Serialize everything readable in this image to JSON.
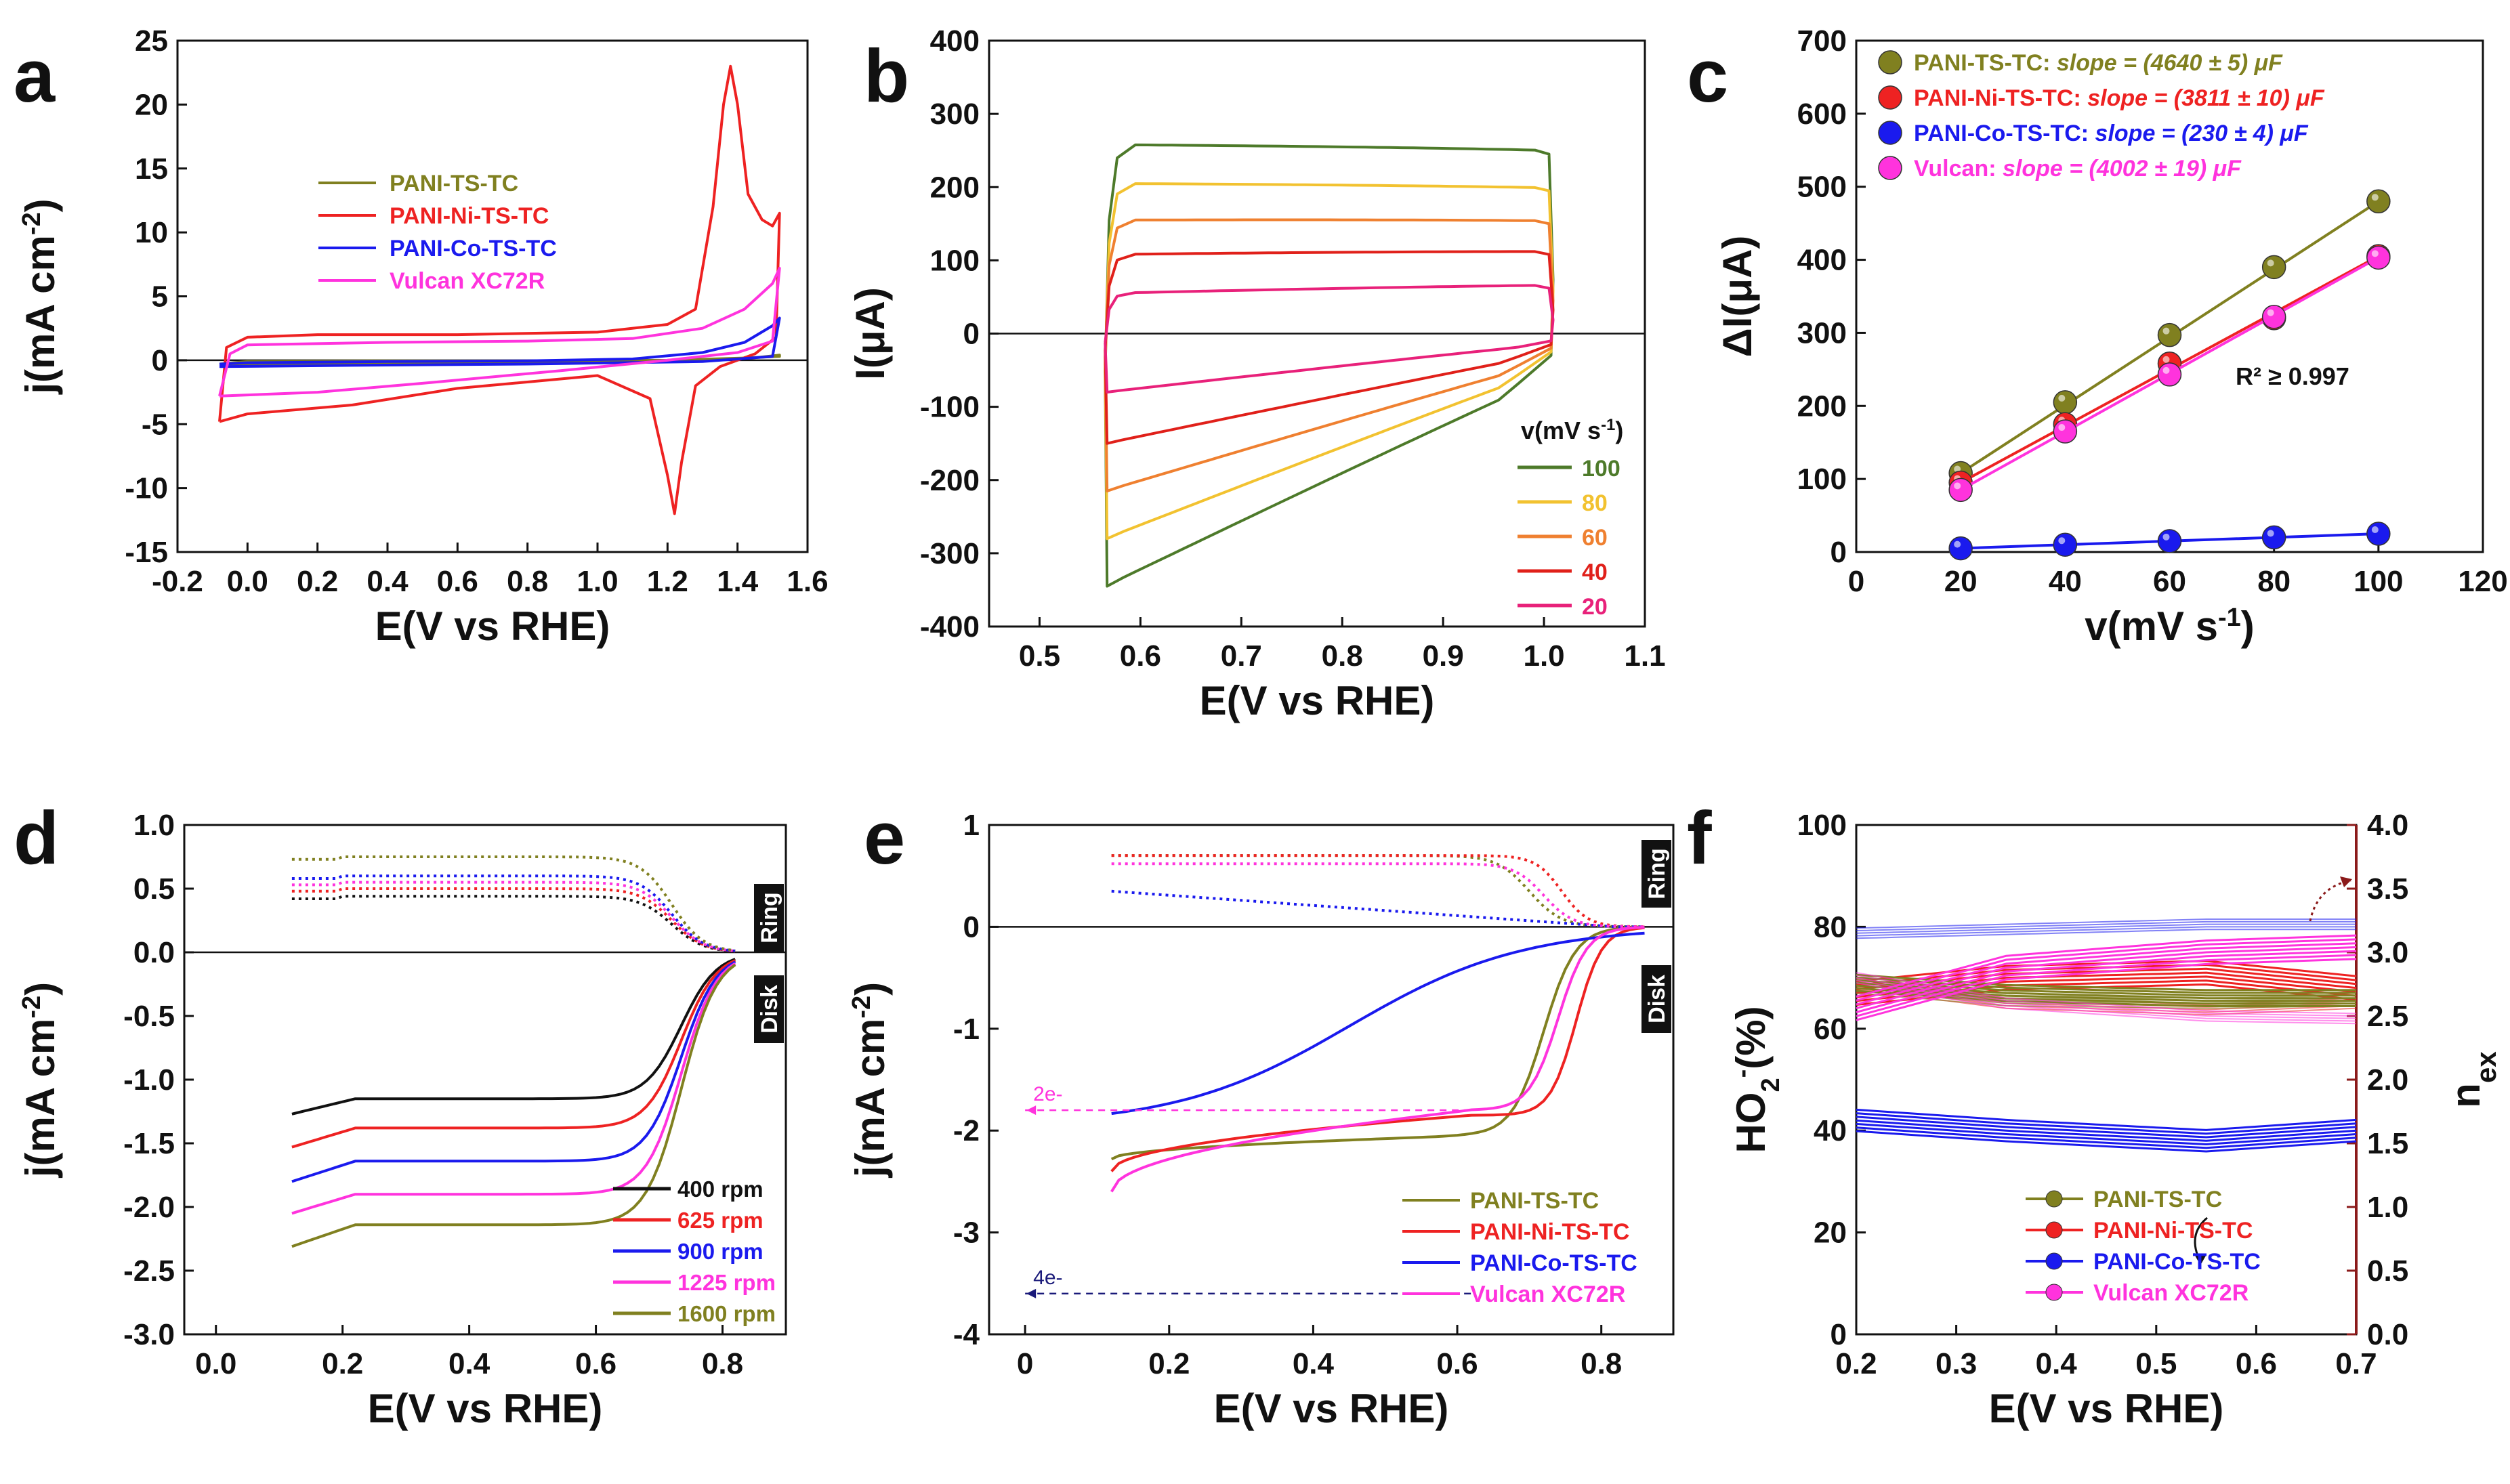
{
  "figure": {
    "panels": [
      {
        "id": "a",
        "letter": "a"
      },
      {
        "id": "b",
        "letter": "b"
      },
      {
        "id": "c",
        "letter": "c"
      },
      {
        "id": "d",
        "letter": "d"
      },
      {
        "id": "e",
        "letter": "e"
      },
      {
        "id": "f",
        "letter": "f"
      }
    ]
  },
  "colors": {
    "tc": "#808020",
    "ni": "#ee2222",
    "co": "#1a1aee",
    "vulcan": "#ff33dd",
    "rpm400": "#111111",
    "navy": "#1a1a7a",
    "darkred": "#8b1a1a",
    "green100": "#4d7a2a",
    "yellow80": "#f2c230",
    "orange60": "#ef8030",
    "red40": "#e0201a",
    "pink20": "#e8217a"
  },
  "chart_data": [
    {
      "panel": "a",
      "type": "line",
      "xlabel": "E(V vs RHE)",
      "ylabel": "j(mA cm-2)",
      "xlim": [
        -0.2,
        1.6
      ],
      "ylim": [
        -15,
        25
      ],
      "xticks": [
        "-0.2",
        "0.0",
        "0.2",
        "0.4",
        "0.6",
        "0.8",
        "1.0",
        "1.2",
        "1.4",
        "1.6"
      ],
      "yticks": [
        "-15",
        "-10",
        "-5",
        "0",
        "5",
        "10",
        "15",
        "20",
        "25"
      ],
      "legend": [
        "PANI-TS-TC",
        "PANI-Ni-TS-TC",
        "PANI-Co-TS-TC",
        "Vulcan XC72R"
      ],
      "series": [
        {
          "name": "PANI-TS-TC",
          "color": "tc",
          "points": [
            [
              -0.08,
              -0.3
            ],
            [
              0.0,
              -0.1
            ],
            [
              0.4,
              -0.05
            ],
            [
              0.8,
              -0.05
            ],
            [
              1.2,
              0.0
            ],
            [
              1.45,
              0.2
            ],
            [
              1.52,
              0.4
            ],
            [
              1.52,
              0.3
            ],
            [
              1.2,
              -0.1
            ],
            [
              0.6,
              -0.2
            ],
            [
              0.2,
              -0.25
            ],
            [
              -0.08,
              -0.3
            ]
          ]
        },
        {
          "name": "PANI-Ni-TS-TC",
          "color": "ni",
          "points": [
            [
              -0.08,
              -4.8
            ],
            [
              -0.06,
              1.0
            ],
            [
              0.0,
              1.8
            ],
            [
              0.2,
              2.0
            ],
            [
              0.6,
              2.0
            ],
            [
              1.0,
              2.2
            ],
            [
              1.2,
              2.8
            ],
            [
              1.28,
              4.0
            ],
            [
              1.33,
              12
            ],
            [
              1.36,
              20
            ],
            [
              1.38,
              23
            ],
            [
              1.4,
              20
            ],
            [
              1.43,
              13
            ],
            [
              1.47,
              11
            ],
            [
              1.5,
              10.5
            ],
            [
              1.52,
              11.5
            ],
            [
              1.51,
              1.8
            ],
            [
              1.45,
              0.5
            ],
            [
              1.35,
              -0.5
            ],
            [
              1.28,
              -2.0
            ],
            [
              1.24,
              -8
            ],
            [
              1.22,
              -12
            ],
            [
              1.2,
              -9
            ],
            [
              1.15,
              -3
            ],
            [
              1.0,
              -1.2
            ],
            [
              0.6,
              -2.2
            ],
            [
              0.3,
              -3.5
            ],
            [
              0.0,
              -4.2
            ],
            [
              -0.08,
              -4.8
            ]
          ]
        },
        {
          "name": "PANI-Co-TS-TC",
          "color": "co",
          "points": [
            [
              -0.08,
              -0.3
            ],
            [
              0.0,
              -0.2
            ],
            [
              0.4,
              -0.1
            ],
            [
              0.8,
              -0.05
            ],
            [
              1.1,
              0.1
            ],
            [
              1.3,
              0.6
            ],
            [
              1.42,
              1.4
            ],
            [
              1.5,
              2.7
            ],
            [
              1.52,
              3.3
            ],
            [
              1.5,
              0.3
            ],
            [
              1.3,
              -0.1
            ],
            [
              0.8,
              -0.3
            ],
            [
              0.3,
              -0.4
            ],
            [
              -0.08,
              -0.5
            ]
          ]
        },
        {
          "name": "Vulcan XC72R",
          "color": "vulcan",
          "points": [
            [
              -0.08,
              -2.8
            ],
            [
              -0.05,
              0.5
            ],
            [
              0.0,
              1.2
            ],
            [
              0.4,
              1.4
            ],
            [
              0.8,
              1.5
            ],
            [
              1.1,
              1.7
            ],
            [
              1.3,
              2.5
            ],
            [
              1.42,
              4.0
            ],
            [
              1.5,
              6.0
            ],
            [
              1.52,
              7.2
            ],
            [
              1.5,
              1.5
            ],
            [
              1.4,
              0.6
            ],
            [
              1.2,
              0.0
            ],
            [
              0.9,
              -0.8
            ],
            [
              0.5,
              -1.8
            ],
            [
              0.2,
              -2.5
            ],
            [
              -0.08,
              -2.8
            ]
          ]
        }
      ]
    },
    {
      "panel": "b",
      "type": "line",
      "xlabel": "E(V vs RHE)",
      "ylabel": "I(μA)",
      "xlim": [
        0.45,
        1.1
      ],
      "ylim": [
        -400,
        400
      ],
      "xticks": [
        "0.5",
        "0.6",
        "0.7",
        "0.8",
        "0.9",
        "1.0",
        "1.1"
      ],
      "yticks": [
        "-400",
        "-300",
        "-200",
        "-100",
        "0",
        "100",
        "200",
        "300",
        "400"
      ],
      "legend_title": "v(mV s-1)",
      "series": [
        {
          "name": "100",
          "color": "green100",
          "upper": 258,
          "top_end": 245,
          "lower_start": -345,
          "lower_end": -30
        },
        {
          "name": "80",
          "color": "yellow80",
          "upper": 205,
          "top_end": 195,
          "lower_start": -280,
          "lower_end": -25
        },
        {
          "name": "60",
          "color": "orange60",
          "upper": 155,
          "top_end": 150,
          "lower_start": -215,
          "lower_end": -20
        },
        {
          "name": "40",
          "color": "red40",
          "upper": 108,
          "top_end": 108,
          "lower_start": -150,
          "lower_end": -15
        },
        {
          "name": "20",
          "color": "pink20",
          "upper": 55,
          "top_end": 62,
          "lower_start": -80,
          "lower_end": -10
        }
      ]
    },
    {
      "panel": "c",
      "type": "scatter",
      "xlabel": "v(mV s-1)",
      "ylabel": "ΔI(μA)",
      "xlim": [
        0,
        120
      ],
      "ylim": [
        0,
        700
      ],
      "xticks": [
        "0",
        "20",
        "40",
        "60",
        "80",
        "100",
        "120"
      ],
      "yticks": [
        "0",
        "100",
        "200",
        "300",
        "400",
        "500",
        "600",
        "700"
      ],
      "annotation": "R² ≥  0.997",
      "x": [
        20,
        40,
        60,
        80,
        100
      ],
      "series": [
        {
          "name": "PANI-TS-TC:",
          "slope": "slope = (4640 ± 5) μF",
          "color": "tc",
          "values": [
            108,
            205,
            297,
            390,
            480
          ]
        },
        {
          "name": "PANI-Ni-TS-TC:",
          "slope": "slope = (3811 ± 10) μF",
          "color": "ni",
          "values": [
            95,
            175,
            258,
            320,
            405
          ]
        },
        {
          "name": "PANI-Co-TS-TC:",
          "slope": "slope = (230 ± 4) μF",
          "color": "co",
          "values": [
            5,
            10,
            15,
            20,
            25
          ]
        },
        {
          "name": "Vulcan:",
          "slope": "slope = (4002 ± 19) μF",
          "color": "vulcan",
          "values": [
            85,
            165,
            243,
            322,
            403
          ]
        }
      ]
    },
    {
      "panel": "d",
      "type": "line",
      "xlabel": "E(V vs RHE)",
      "ylabel": "j(mA cm-2)",
      "xlim": [
        -0.05,
        0.9
      ],
      "ylim": [
        -3.0,
        1.0
      ],
      "xticks": [
        "0.0",
        "0.2",
        "0.4",
        "0.6",
        "0.8"
      ],
      "yticks": [
        "-3.0",
        "-2.5",
        "-2.0",
        "-1.5",
        "-1.0",
        "-0.5",
        "0.0",
        "0.5",
        "1.0"
      ],
      "side_labels": [
        "Ring",
        "Disk"
      ],
      "series": [
        {
          "name": "400 rpm",
          "color": "rpm400",
          "disk_start": -1.27,
          "disk_plateau": -1.15,
          "ring": 0.44
        },
        {
          "name": "625 rpm",
          "color": "ni",
          "disk_start": -1.53,
          "disk_plateau": -1.38,
          "ring": 0.5
        },
        {
          "name": "900 rpm",
          "color": "co",
          "disk_start": -1.8,
          "disk_plateau": -1.64,
          "ring": 0.6
        },
        {
          "name": "1225 rpm",
          "color": "vulcan",
          "disk_start": -2.05,
          "disk_plateau": -1.9,
          "ring": 0.55
        },
        {
          "name": "1600 rpm",
          "color": "tc",
          "disk_start": -2.31,
          "disk_plateau": -2.14,
          "ring": 0.75
        }
      ]
    },
    {
      "panel": "e",
      "type": "line",
      "xlabel": "E(V vs RHE)",
      "ylabel": "j(mA cm-2)",
      "xlim": [
        -0.05,
        0.9
      ],
      "ylim": [
        -4,
        1
      ],
      "xticks": [
        "0",
        "0.2",
        "0.4",
        "0.6",
        "0.8"
      ],
      "yticks": [
        "-4",
        "-3",
        "-2",
        "-1",
        "0",
        "1"
      ],
      "side_labels": [
        "Ring",
        "Disk"
      ],
      "ref_lines": [
        {
          "label": "2e-",
          "y": -1.8,
          "color": "vulcan"
        },
        {
          "label": "4e-",
          "y": -3.6,
          "color": "navy"
        }
      ],
      "legend": [
        "PANI-TS-TC",
        "PANI-Ni-TS-TC",
        "PANI-Co-TS-TC",
        "Vulcan XC72R"
      ]
    },
    {
      "panel": "f",
      "type": "line",
      "xlabel": "E(V vs RHE)",
      "ylabel": "HO2-(%)",
      "ylabel_right": "nex",
      "xlim": [
        0.2,
        0.7
      ],
      "ylim": [
        0,
        100
      ],
      "ylim_right": [
        0,
        4.0
      ],
      "xticks": [
        "0.2",
        "0.3",
        "0.4",
        "0.5",
        "0.6",
        "0.7"
      ],
      "yticks": [
        "0",
        "20",
        "40",
        "60",
        "80",
        "100"
      ],
      "yticks_right": [
        "0.0",
        "0.5",
        "1.0",
        "1.5",
        "2.0",
        "2.5",
        "3.0",
        "3.5",
        "4.0"
      ],
      "legend": [
        "PANI-TS-TC",
        "PANI-Ni-TS-TC",
        "PANI-Co-TS-TC",
        "Vulcan XC72R"
      ]
    }
  ]
}
